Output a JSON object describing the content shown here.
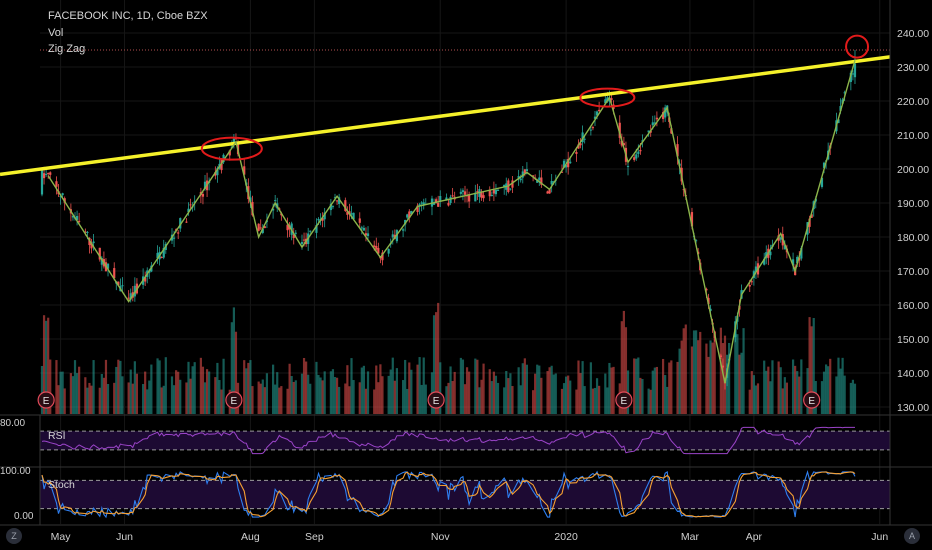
{
  "legend": {
    "title": "FACEBOOK INC, 1D, Cboe BZX",
    "indicator_1": "Vol",
    "indicator_2": "Zig Zag"
  },
  "price_axis": {
    "ticks": [
      "240.00",
      "230.00",
      "220.00",
      "210.00",
      "200.00",
      "190.00",
      "180.00",
      "170.00",
      "160.00",
      "150.00",
      "140.00",
      "130.00"
    ]
  },
  "time_axis": {
    "ticks": [
      "May",
      "Jun",
      "Aug",
      "Sep",
      "Nov",
      "2020",
      "Mar",
      "Apr",
      "Jun"
    ]
  },
  "rsi_pane": {
    "label": "RSI",
    "top_value": "80.00"
  },
  "stoch_pane": {
    "label": "Stoch",
    "top_value": "100.00",
    "bottom_value": "0.00"
  },
  "earnings_marker": "E",
  "corner_left": "Z",
  "corner_right": "A",
  "colors": {
    "up": "#26a69a",
    "down": "#ef5350",
    "trendline": "#f5f12a",
    "zigzag": "#8cb54a",
    "highlight": "#e21b1b",
    "rsi_line": "#9b44c9",
    "stoch_k": "#2f7ff0",
    "stoch_d": "#f6a033",
    "pane_fill": "#1d0a33"
  },
  "chart_data": {
    "type": "candlestick",
    "symbol": "FACEBOOK INC, 1D, Cboe BZX",
    "ylim": [
      127,
      244
    ],
    "zigzag_pivots": [
      {
        "date": "2019-04-25",
        "price": 198
      },
      {
        "date": "2019-06-03",
        "price": 161
      },
      {
        "date": "2019-07-25",
        "price": 208
      },
      {
        "date": "2019-08-05",
        "price": 180
      },
      {
        "date": "2019-08-13",
        "price": 190
      },
      {
        "date": "2019-08-26",
        "price": 177
      },
      {
        "date": "2019-09-12",
        "price": 192
      },
      {
        "date": "2019-10-03",
        "price": 174
      },
      {
        "date": "2019-10-21",
        "price": 189
      },
      {
        "date": "2019-12-04",
        "price": 195
      },
      {
        "date": "2019-12-13",
        "price": 199
      },
      {
        "date": "2019-12-24",
        "price": 194
      },
      {
        "date": "2020-01-22",
        "price": 221
      },
      {
        "date": "2020-01-31",
        "price": 202
      },
      {
        "date": "2020-02-19",
        "price": 218
      },
      {
        "date": "2020-03-18",
        "price": 137
      },
      {
        "date": "2020-03-26",
        "price": 163
      },
      {
        "date": "2020-04-14",
        "price": 181
      },
      {
        "date": "2020-04-21",
        "price": 170
      },
      {
        "date": "2020-05-20",
        "price": 232
      }
    ],
    "trendline": [
      {
        "date": "2019-04-22",
        "price": 199
      },
      {
        "date": "2020-06-05",
        "price": 233
      }
    ],
    "highlight_level": 235,
    "earnings_dates": [
      "2019-04-24",
      "2019-07-24",
      "2019-10-30",
      "2020-01-29",
      "2020-04-29"
    ],
    "rsi": {
      "upper_band": 70,
      "lower_band": 30
    },
    "stoch": {
      "upper_band": 80,
      "lower_band": 20
    }
  }
}
